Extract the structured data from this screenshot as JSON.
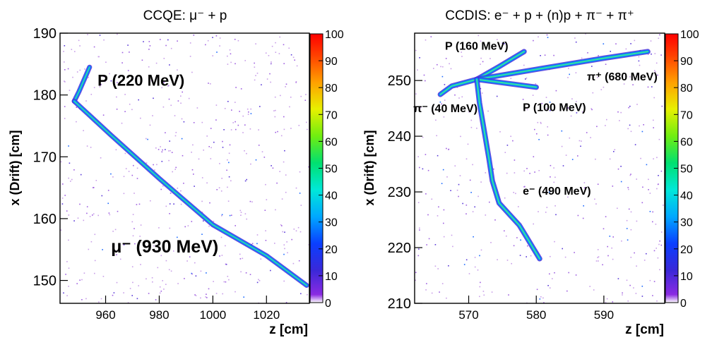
{
  "chart_data": [
    {
      "type": "heatmap",
      "title": "CCQE: μ⁻ + p",
      "xlabel": "z [cm]",
      "ylabel": "x (Drift) [cm]",
      "xlim": [
        943,
        1036
      ],
      "ylim": [
        146.3,
        190
      ],
      "x_ticks": [
        960,
        980,
        1000,
        1020
      ],
      "y_ticks": [
        150,
        160,
        170,
        180,
        190
      ],
      "colorbar_ticks": [
        0,
        10,
        20,
        30,
        40,
        50,
        60,
        70,
        80,
        90,
        100
      ],
      "colorbar_range": [
        0,
        100
      ],
      "tracks": [
        {
          "label": "P (220 MeV)",
          "points": [
            [
              954,
              184.5
            ],
            [
              950,
              180.5
            ],
            [
              948.3,
              179
            ]
          ]
        },
        {
          "label": "μ⁻ (930 MeV)",
          "points": [
            [
              948.3,
              179
            ],
            [
              962,
              173.5
            ],
            [
              980,
              166.5
            ],
            [
              1000,
              159
            ],
            [
              1020,
              154
            ],
            [
              1035,
              149.2
            ]
          ]
        }
      ],
      "annotations": [
        {
          "text": "P (220 MeV)",
          "x": 957,
          "y": 181.5
        },
        {
          "text": "μ⁻ (930 MeV)",
          "x": 962,
          "y": 154.5
        }
      ]
    },
    {
      "type": "heatmap",
      "title": "CCDIS: e⁻ + p + (n)p + π⁻ + π⁺",
      "xlabel": "z [cm]",
      "ylabel": "x (Drift) [cm]",
      "xlim": [
        562,
        599
      ],
      "ylim": [
        210,
        258.5
      ],
      "x_ticks": [
        570,
        580,
        590
      ],
      "y_ticks": [
        210,
        220,
        230,
        240,
        250
      ],
      "colorbar_ticks": [
        0,
        10,
        20,
        30,
        40,
        50,
        60,
        70,
        80,
        90,
        100
      ],
      "colorbar_range": [
        0,
        100
      ],
      "tracks": [
        {
          "label": "P (160 MeV)",
          "points": [
            [
              571.2,
              250.2
            ],
            [
              574.5,
              252.5
            ],
            [
              578.2,
              255.2
            ]
          ]
        },
        {
          "label": "π⁺ (680 MeV)",
          "points": [
            [
              571.2,
              250.2
            ],
            [
              580,
              252
            ],
            [
              590,
              254
            ],
            [
              596.5,
              255.2
            ]
          ]
        },
        {
          "label": "P (100 MeV)",
          "points": [
            [
              571.2,
              250.2
            ],
            [
              575,
              249.6
            ],
            [
              580,
              248.8
            ]
          ]
        },
        {
          "label": "π⁻ (40 MeV)",
          "points": [
            [
              571.2,
              250.2
            ],
            [
              567.5,
              249
            ],
            [
              565.8,
              247.5
            ]
          ]
        },
        {
          "label": "e⁻ (490 MeV)",
          "points": [
            [
              571.2,
              250.2
            ],
            [
              571.6,
              246
            ],
            [
              572.3,
              241
            ],
            [
              573,
              236
            ],
            [
              573.5,
              232
            ],
            [
              574.5,
              228
            ],
            [
              576,
              226
            ],
            [
              577.5,
              224
            ],
            [
              578.5,
              222
            ],
            [
              579.5,
              220
            ],
            [
              580.5,
              218
            ]
          ]
        }
      ],
      "annotations": [
        {
          "text": "P (160 MeV)",
          "x": 566.5,
          "y": 255.5
        },
        {
          "text": "π⁺ (680 MeV)",
          "x": 587.5,
          "y": 250
        },
        {
          "text": "P (100 MeV)",
          "x": 578,
          "y": 244.5
        },
        {
          "text": "π⁻ (40 MeV)",
          "x": 561.8,
          "y": 244.3
        },
        {
          "text": "e⁻ (490 MeV)",
          "x": 578,
          "y": 229.5
        }
      ]
    }
  ]
}
